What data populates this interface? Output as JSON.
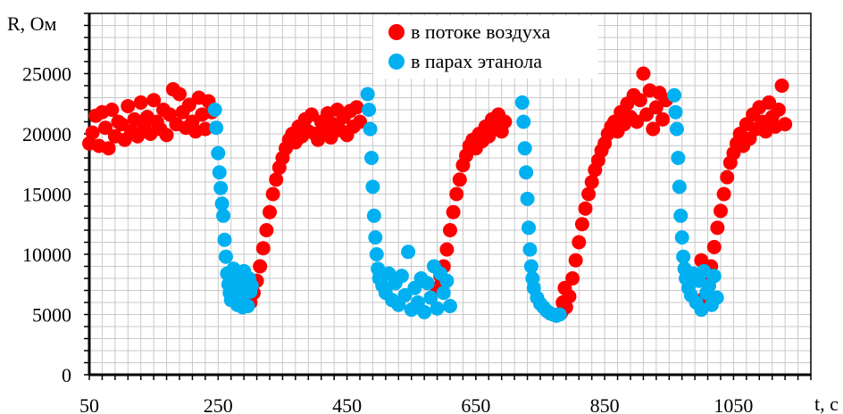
{
  "chart_data": {
    "type": "scatter",
    "xlabel": "t, c",
    "ylabel": "R, Ом",
    "xlim": [
      50,
      1170
    ],
    "ylim": [
      0,
      30000
    ],
    "x_ticks": [
      50,
      250,
      450,
      650,
      850,
      1050
    ],
    "y_ticks": [
      0,
      5000,
      10000,
      15000,
      20000,
      25000
    ],
    "grid": true,
    "legend_placement": "top-center",
    "series": [
      {
        "name": "в потоке воздуха",
        "color": "#ff0000",
        "points": [
          [
            50,
            19200
          ],
          [
            55,
            20100
          ],
          [
            60,
            21500
          ],
          [
            65,
            19000
          ],
          [
            70,
            21800
          ],
          [
            75,
            20500
          ],
          [
            80,
            18800
          ],
          [
            85,
            22000
          ],
          [
            90,
            19800
          ],
          [
            95,
            21000
          ],
          [
            100,
            20800
          ],
          [
            105,
            19500
          ],
          [
            110,
            22300
          ],
          [
            115,
            20200
          ],
          [
            120,
            21200
          ],
          [
            125,
            19800
          ],
          [
            130,
            22600
          ],
          [
            135,
            20600
          ],
          [
            140,
            21400
          ],
          [
            145,
            20000
          ],
          [
            150,
            22800
          ],
          [
            155,
            21000
          ],
          [
            160,
            20400
          ],
          [
            165,
            22000
          ],
          [
            170,
            19900
          ],
          [
            175,
            21600
          ],
          [
            180,
            23700
          ],
          [
            185,
            20800
          ],
          [
            190,
            23300
          ],
          [
            195,
            21800
          ],
          [
            200,
            20500
          ],
          [
            205,
            22400
          ],
          [
            210,
            21000
          ],
          [
            215,
            20200
          ],
          [
            220,
            23000
          ],
          [
            225,
            21600
          ],
          [
            230,
            20400
          ],
          [
            235,
            22700
          ],
          [
            240,
            21800
          ],
          [
            300,
            6000
          ],
          [
            305,
            6800
          ],
          [
            310,
            7800
          ],
          [
            315,
            9000
          ],
          [
            320,
            10500
          ],
          [
            325,
            12000
          ],
          [
            330,
            13500
          ],
          [
            335,
            15000
          ],
          [
            340,
            16200
          ],
          [
            345,
            17200
          ],
          [
            350,
            18000
          ],
          [
            355,
            18800
          ],
          [
            360,
            19500
          ],
          [
            365,
            20000
          ],
          [
            370,
            19300
          ],
          [
            375,
            20600
          ],
          [
            380,
            19800
          ],
          [
            385,
            21200
          ],
          [
            390,
            20200
          ],
          [
            395,
            21600
          ],
          [
            400,
            20000
          ],
          [
            405,
            19500
          ],
          [
            410,
            21000
          ],
          [
            415,
            20400
          ],
          [
            420,
            21700
          ],
          [
            425,
            19700
          ],
          [
            430,
            20800
          ],
          [
            435,
            22000
          ],
          [
            440,
            20300
          ],
          [
            445,
            21400
          ],
          [
            450,
            19900
          ],
          [
            455,
            21900
          ],
          [
            460,
            20600
          ],
          [
            465,
            22200
          ],
          [
            470,
            21000
          ],
          [
            590,
            7200
          ],
          [
            595,
            8200
          ],
          [
            600,
            9000
          ],
          [
            605,
            10400
          ],
          [
            610,
            12000
          ],
          [
            615,
            13500
          ],
          [
            620,
            15000
          ],
          [
            625,
            16200
          ],
          [
            630,
            17400
          ],
          [
            635,
            18200
          ],
          [
            640,
            19000
          ],
          [
            645,
            19500
          ],
          [
            650,
            18800
          ],
          [
            655,
            20000
          ],
          [
            660,
            19400
          ],
          [
            665,
            20600
          ],
          [
            670,
            19800
          ],
          [
            675,
            21200
          ],
          [
            680,
            20400
          ],
          [
            685,
            21600
          ],
          [
            690,
            20200
          ],
          [
            695,
            21000
          ],
          [
            782,
            5100
          ],
          [
            785,
            6000
          ],
          [
            788,
            7200
          ],
          [
            790,
            5600
          ],
          [
            795,
            6500
          ],
          [
            800,
            8000
          ],
          [
            805,
            9500
          ],
          [
            810,
            11000
          ],
          [
            815,
            12500
          ],
          [
            820,
            13800
          ],
          [
            825,
            15000
          ],
          [
            830,
            16000
          ],
          [
            835,
            17000
          ],
          [
            840,
            17800
          ],
          [
            845,
            18600
          ],
          [
            850,
            19200
          ],
          [
            855,
            20000
          ],
          [
            860,
            20600
          ],
          [
            865,
            21000
          ],
          [
            870,
            20200
          ],
          [
            875,
            21800
          ],
          [
            880,
            20800
          ],
          [
            885,
            22500
          ],
          [
            890,
            21400
          ],
          [
            895,
            23200
          ],
          [
            900,
            21000
          ],
          [
            905,
            22800
          ],
          [
            910,
            25000
          ],
          [
            915,
            21600
          ],
          [
            920,
            23600
          ],
          [
            925,
            20400
          ],
          [
            930,
            22200
          ],
          [
            935,
            23400
          ],
          [
            940,
            21200
          ],
          [
            945,
            22800
          ],
          [
            1000,
            9500
          ],
          [
            1005,
            6400
          ],
          [
            1010,
            7600
          ],
          [
            1015,
            9000
          ],
          [
            1020,
            10600
          ],
          [
            1025,
            12200
          ],
          [
            1030,
            13600
          ],
          [
            1035,
            15000
          ],
          [
            1040,
            16400
          ],
          [
            1045,
            17600
          ],
          [
            1050,
            18400
          ],
          [
            1055,
            19200
          ],
          [
            1060,
            20000
          ],
          [
            1065,
            19000
          ],
          [
            1070,
            20800
          ],
          [
            1075,
            19600
          ],
          [
            1080,
            21600
          ],
          [
            1085,
            20400
          ],
          [
            1090,
            22200
          ],
          [
            1095,
            21000
          ],
          [
            1100,
            20200
          ],
          [
            1105,
            22600
          ],
          [
            1110,
            21400
          ],
          [
            1115,
            20600
          ],
          [
            1120,
            22000
          ],
          [
            1125,
            24000
          ],
          [
            1130,
            20800
          ]
        ]
      },
      {
        "name": "в парах этанола",
        "color": "#00b0f0",
        "points": [
          [
            245,
            22000
          ],
          [
            247,
            20500
          ],
          [
            250,
            18400
          ],
          [
            252,
            16800
          ],
          [
            254,
            15500
          ],
          [
            256,
            14200
          ],
          [
            258,
            13200
          ],
          [
            260,
            11200
          ],
          [
            262,
            9800
          ],
          [
            264,
            8400
          ],
          [
            266,
            7500
          ],
          [
            268,
            6800
          ],
          [
            270,
            6200
          ],
          [
            272,
            7800
          ],
          [
            274,
            8800
          ],
          [
            276,
            6600
          ],
          [
            278,
            7200
          ],
          [
            280,
            5800
          ],
          [
            282,
            8200
          ],
          [
            284,
            6400
          ],
          [
            286,
            7600
          ],
          [
            288,
            5600
          ],
          [
            290,
            8600
          ],
          [
            292,
            6800
          ],
          [
            294,
            7400
          ],
          [
            296,
            5700
          ],
          [
            298,
            8000
          ],
          [
            300,
            6900
          ],
          [
            302,
            7400
          ],
          [
            482,
            23300
          ],
          [
            484,
            22000
          ],
          [
            486,
            20400
          ],
          [
            488,
            18000
          ],
          [
            490,
            15600
          ],
          [
            492,
            13200
          ],
          [
            494,
            11400
          ],
          [
            496,
            10000
          ],
          [
            498,
            8800
          ],
          [
            500,
            8000
          ],
          [
            505,
            7400
          ],
          [
            510,
            6800
          ],
          [
            515,
            8400
          ],
          [
            520,
            6200
          ],
          [
            525,
            7600
          ],
          [
            530,
            5800
          ],
          [
            535,
            8200
          ],
          [
            540,
            6600
          ],
          [
            545,
            10200
          ],
          [
            550,
            5400
          ],
          [
            555,
            7200
          ],
          [
            560,
            6000
          ],
          [
            565,
            8000
          ],
          [
            570,
            5200
          ],
          [
            575,
            7600
          ],
          [
            580,
            6400
          ],
          [
            585,
            9000
          ],
          [
            590,
            5500
          ],
          [
            595,
            8400
          ],
          [
            600,
            6800
          ],
          [
            605,
            7800
          ],
          [
            610,
            5700
          ],
          [
            722,
            22600
          ],
          [
            724,
            21000
          ],
          [
            726,
            18800
          ],
          [
            728,
            16800
          ],
          [
            730,
            14600
          ],
          [
            732,
            12200
          ],
          [
            734,
            10400
          ],
          [
            736,
            9000
          ],
          [
            738,
            8000
          ],
          [
            740,
            7200
          ],
          [
            745,
            6400
          ],
          [
            750,
            5900
          ],
          [
            755,
            5600
          ],
          [
            760,
            5300
          ],
          [
            765,
            5100
          ],
          [
            770,
            5000
          ],
          [
            775,
            4900
          ],
          [
            780,
            5000
          ],
          [
            958,
            23200
          ],
          [
            960,
            21800
          ],
          [
            962,
            20400
          ],
          [
            964,
            18000
          ],
          [
            966,
            15600
          ],
          [
            968,
            13200
          ],
          [
            970,
            11400
          ],
          [
            972,
            9800
          ],
          [
            974,
            8800
          ],
          [
            976,
            8000
          ],
          [
            980,
            7200
          ],
          [
            984,
            6600
          ],
          [
            988,
            8400
          ],
          [
            992,
            6000
          ],
          [
            996,
            7800
          ],
          [
            1000,
            5400
          ],
          [
            1004,
            8600
          ],
          [
            1008,
            6800
          ],
          [
            1012,
            7400
          ],
          [
            1016,
            5800
          ],
          [
            1020,
            8200
          ],
          [
            1024,
            6400
          ]
        ]
      }
    ]
  }
}
